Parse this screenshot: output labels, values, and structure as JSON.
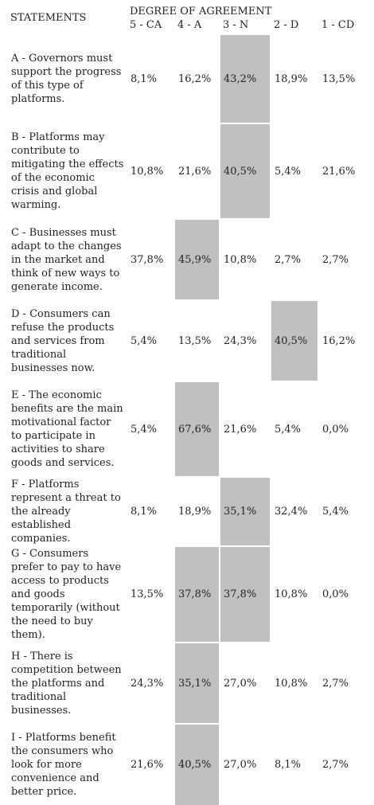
{
  "header": {
    "statements": "STATEMENTS",
    "degree": "DEGREE OF AGREEMENT",
    "columns": [
      "5 - CA",
      "4 - A",
      "3 - N",
      "2 - D",
      "1 - CD"
    ]
  },
  "rows": [
    {
      "statement": "A - Governors must support the progress of this type of platforms.",
      "values": [
        "8,1%",
        "16,2%",
        "43,2%",
        "18,9%",
        "13,5%"
      ],
      "highlight": 2
    },
    {
      "statement": "B - Platforms may contribute to mitigating the effects of the economic crisis and global warming.",
      "values": [
        "10,8%",
        "21,6%",
        "40,5%",
        "5,4%",
        "21,6%"
      ],
      "highlight": 2
    },
    {
      "statement": "C - Businesses must adapt to the changes in the market and think of new ways to generate income.",
      "values": [
        "37,8%",
        "45,9%",
        "10,8%",
        "2,7%",
        "2,7%"
      ],
      "highlight": 1
    },
    {
      "statement": "D - Consumers can refuse the products and services from traditional businesses now.",
      "values": [
        "5,4%",
        "13,5%",
        "24,3%",
        "40,5%",
        "16,2%"
      ],
      "highlight": 3
    },
    {
      "statement": "E - The economic benefits are the main motivational factor to participate in activities to share goods and services.",
      "values": [
        "5,4%",
        "67,6%",
        "21,6%",
        "5,4%",
        "0,0%"
      ],
      "highlight": 1
    },
    {
      "statement": "F - Platforms represent a threat to the already established companies.",
      "values": [
        "8,1%",
        "18,9%",
        "35,1%",
        "32,4%",
        "5,4%"
      ],
      "highlight": 2
    },
    {
      "statement": "G - Consumers prefer to pay to have access to products and goods temporarily (without the need to buy them).",
      "values": [
        "13,5%",
        "37,8%",
        "37,8%",
        "10,8%",
        "0,0%"
      ],
      "highlight": [
        1,
        2
      ]
    },
    {
      "statement": "H - There is competition between the platforms and traditional businesses.",
      "values": [
        "24,3%",
        "35,1%",
        "27,0%",
        "10,8%",
        "2,7%"
      ],
      "highlight": 1
    },
    {
      "statement": "I - Platforms benefit the consumers who look for more convenience and better price.",
      "values": [
        "21,6%",
        "40,5%",
        "27,0%",
        "8,1%",
        "2,7%"
      ],
      "highlight": 1
    }
  ],
  "colors": {
    "highlight": "#c0c0c0",
    "text": "#222222",
    "background": "#ffffff"
  }
}
